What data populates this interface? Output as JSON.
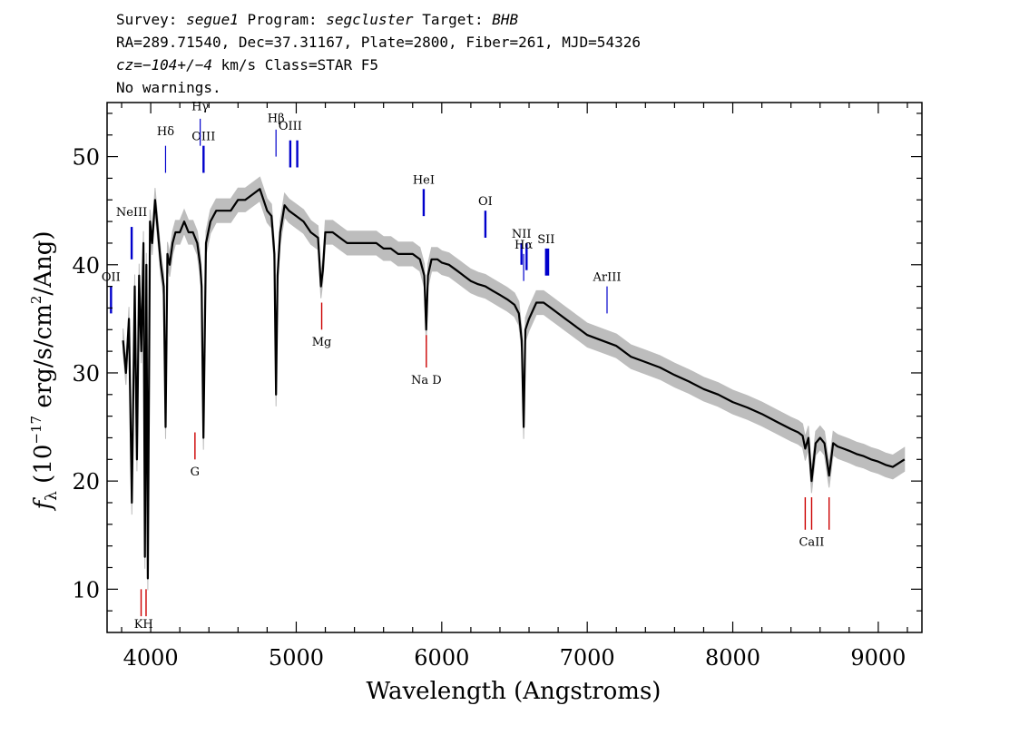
{
  "header": {
    "line1": {
      "survey_label": "Survey:",
      "survey": "segue1",
      "program_label": "Program:",
      "program": "segcluster",
      "target_label": "Target:",
      "target": "BHB"
    },
    "line2": "RA=289.71540, Dec=37.31167, Plate=2800, Fiber=261, MJD=54326",
    "line3": {
      "cz": "cz=−104+/−4",
      "rest": "km/s Class=STAR F5"
    },
    "line4": "No warnings."
  },
  "colors": {
    "spectrum": "#000000",
    "error_band": "#bdbdbd",
    "emission": "#0000cc",
    "absorption": "#cc0000",
    "axis": "#000000"
  },
  "chart_data": {
    "type": "line",
    "xlabel": "Wavelength (Angstroms)",
    "ylabel_parts": {
      "f": "f",
      "sub": "λ",
      "pre": "(10",
      "exp1": "−17",
      "mid": "erg/s/cm",
      "exp2": "2",
      "post": "/Ang)"
    },
    "xlim": [
      3700,
      9300
    ],
    "ylim": [
      6,
      55
    ],
    "xticks": [
      4000,
      5000,
      6000,
      7000,
      8000,
      9000
    ],
    "yticks": [
      10,
      20,
      30,
      40,
      50
    ],
    "grid": false,
    "series": [
      {
        "x": [
          3810,
          3830,
          3850,
          3870,
          3890,
          3905,
          3920,
          3935,
          3950,
          3960,
          3970,
          3980,
          3995,
          4010,
          4030,
          4050,
          4070,
          4090,
          4102,
          4115,
          4130,
          4150,
          4170,
          4200,
          4230,
          4260,
          4290,
          4320,
          4340,
          4350,
          4362,
          4380,
          4410,
          4450,
          4500,
          4550,
          4600,
          4650,
          4700,
          4750,
          4800,
          4830,
          4850,
          4861,
          4872,
          4890,
          4920,
          4950,
          5000,
          5050,
          5100,
          5150,
          5170,
          5183,
          5200,
          5250,
          5300,
          5350,
          5400,
          5450,
          5500,
          5550,
          5600,
          5650,
          5700,
          5750,
          5800,
          5850,
          5880,
          5893,
          5905,
          5930,
          5970,
          6000,
          6050,
          6100,
          6150,
          6200,
          6250,
          6300,
          6350,
          6400,
          6450,
          6500,
          6530,
          6550,
          6563,
          6575,
          6600,
          6650,
          6700,
          6750,
          6800,
          6850,
          6900,
          6950,
          7000,
          7100,
          7200,
          7300,
          7400,
          7500,
          7600,
          7700,
          7800,
          7900,
          8000,
          8100,
          8200,
          8300,
          8400,
          8450,
          8480,
          8498,
          8520,
          8542,
          8570,
          8600,
          8630,
          8662,
          8690,
          8720,
          8760,
          8800,
          8850,
          8900,
          8950,
          9000,
          9050,
          9100,
          9180
        ],
        "y": [
          33,
          30,
          35,
          18,
          38,
          22,
          39,
          32,
          42,
          13,
          40,
          11,
          44,
          42,
          46,
          43,
          40,
          38,
          25,
          41,
          40,
          42,
          43,
          43,
          44,
          43,
          43,
          42,
          40,
          38,
          24,
          42,
          44,
          45,
          45,
          45,
          46,
          46,
          46.5,
          47,
          45,
          44.5,
          41,
          28,
          39,
          43,
          45.5,
          45,
          44.5,
          44,
          43,
          42.5,
          38,
          39.5,
          43,
          43,
          42.5,
          42,
          42,
          42,
          42,
          42,
          41.5,
          41.5,
          41,
          41,
          41,
          40.5,
          39,
          34,
          39,
          40.5,
          40.5,
          40.2,
          40,
          39.5,
          39,
          38.5,
          38.2,
          38,
          37.6,
          37.2,
          36.8,
          36.3,
          35.5,
          33,
          25,
          34,
          35,
          36.5,
          36.5,
          36,
          35.5,
          35,
          34.5,
          34,
          33.5,
          33,
          32.5,
          31.5,
          31,
          30.5,
          29.8,
          29.2,
          28.5,
          28,
          27.3,
          26.8,
          26.2,
          25.5,
          24.8,
          24.5,
          24.2,
          23,
          24,
          20,
          23.5,
          24,
          23.5,
          20.5,
          23.5,
          23.2,
          23,
          22.8,
          22.5,
          22.3,
          22,
          21.8,
          21.5,
          21.3,
          22
        ]
      }
    ],
    "emission_lines": [
      {
        "label": "NeIII",
        "lambda": 3869,
        "y1": 40.5,
        "y2": 43.5,
        "label_y": 44.5
      },
      {
        "label": "OII",
        "lambda": 3727,
        "y1": 35.5,
        "y2": 38,
        "label_y": 38.5
      },
      {
        "label": "OIII",
        "lambda": 4363,
        "y1": 48.5,
        "y2": 51,
        "label_y": 51.5
      },
      {
        "label": "OIII",
        "lambda": 4959,
        "y1": 49,
        "y2": 51.5,
        "label_y": 52.5
      },
      {
        "label": "",
        "lambda": 5007,
        "y1": 49,
        "y2": 51.5,
        "label_y": 0
      },
      {
        "label": "HeI",
        "lambda": 5876,
        "y1": 44.5,
        "y2": 47,
        "label_y": 47.5
      },
      {
        "label": "OI",
        "lambda": 6300,
        "y1": 42.5,
        "y2": 45,
        "label_y": 45.5
      },
      {
        "label": "NII",
        "lambda": 6548,
        "y1": 40,
        "y2": 42,
        "label_y": 42.5
      },
      {
        "label": "",
        "lambda": 6583,
        "y1": 39.5,
        "y2": 42,
        "label_y": 0
      },
      {
        "label": "SII",
        "lambda": 6717,
        "y1": 39,
        "y2": 41.5,
        "label_y": 42
      },
      {
        "label": "",
        "lambda": 6731,
        "y1": 39,
        "y2": 41.5,
        "label_y": 0
      }
    ],
    "balmer_lines": [
      {
        "label": "Hδ",
        "lambda": 4102,
        "y1": 48.5,
        "y2": 51,
        "label_y": 52
      },
      {
        "label": "Hγ",
        "lambda": 4340,
        "y1": 51,
        "y2": 53.5,
        "label_y": 54.3
      },
      {
        "label": "Hβ",
        "lambda": 4861,
        "y1": 50,
        "y2": 52.5,
        "label_y": 53.2
      },
      {
        "label": "Hα",
        "lambda": 6563,
        "y1": 38.5,
        "y2": 41,
        "label_y": 41.5
      },
      {
        "label": "ArIII",
        "lambda": 7136,
        "y1": 35.5,
        "y2": 38,
        "label_y": 38.5
      }
    ],
    "absorption_lines": [
      {
        "label": "K",
        "lambda": 3934,
        "y1": 7.5,
        "y2": 10
      },
      {
        "label": "H",
        "lambda": 3968,
        "y1": 7.5,
        "y2": 10
      },
      {
        "label": "G",
        "lambda": 4304,
        "y1": 22,
        "y2": 24.5,
        "label_y": 20.5
      },
      {
        "label": "Mg",
        "lambda": 5175,
        "y1": 34,
        "y2": 36.5,
        "label_y": 32.5
      },
      {
        "label": "Na  D",
        "lambda": 5894,
        "y1": 30.5,
        "y2": 33.5,
        "label_y": 29
      },
      {
        "label": "",
        "lambda": 8498,
        "y1": 15.5,
        "y2": 18.5,
        "label_y": 0
      },
      {
        "label": "CaII",
        "lambda": 8542,
        "y1": 15.5,
        "y2": 18.5,
        "label_y": 14
      },
      {
        "label": "",
        "lambda": 8662,
        "y1": 15.5,
        "y2": 18.5,
        "label_y": 0
      }
    ],
    "kh_label": "KH"
  }
}
